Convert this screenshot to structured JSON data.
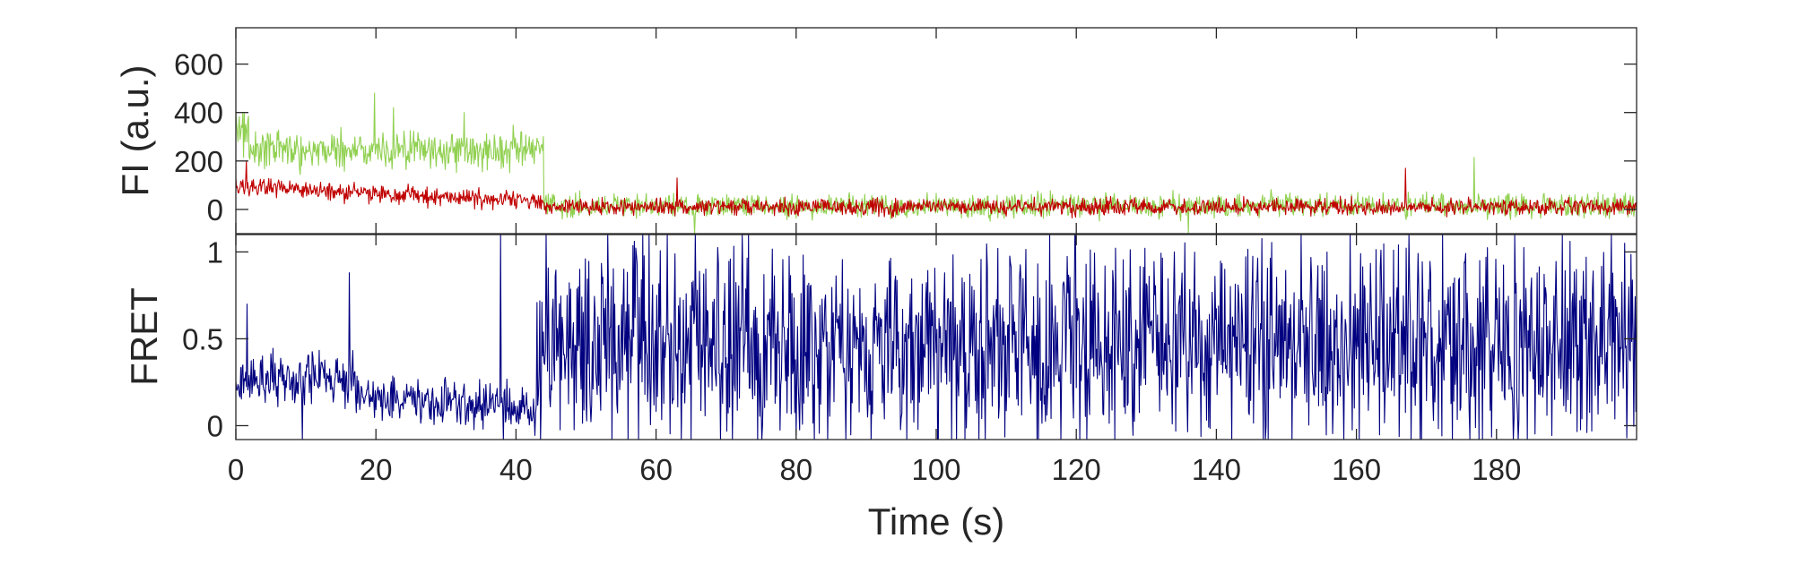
{
  "chart_data": [
    {
      "type": "line",
      "ylabel": "FI (a.u.)",
      "xlim": [
        0,
        200
      ],
      "ylim": [
        -100,
        750
      ],
      "yticks": [
        0,
        200,
        400,
        600
      ],
      "ytick_labels": [
        "0",
        "200",
        "400",
        "600"
      ],
      "grid": false,
      "box": true,
      "series": [
        {
          "color": "#90d050",
          "segments": [
            {
              "x_start": 0,
              "x_end": 2,
              "start": 350,
              "end": 280,
              "noise": 75
            },
            {
              "x_start": 2,
              "x_end": 44,
              "start": 250,
              "end": 240,
              "noise": 70
            },
            {
              "x_start": 44,
              "x_end": 200,
              "start": 15,
              "end": 15,
              "noise": 42
            }
          ],
          "spikes": [
            {
              "x": 1.0,
              "y": 400
            },
            {
              "x": 19.8,
              "y": 480
            },
            {
              "x": 22.5,
              "y": 420
            },
            {
              "x": 32.6,
              "y": 400
            },
            {
              "x": 40.8,
              "y": 320
            },
            {
              "x": 176.8,
              "y": 215
            },
            {
              "x": 65.5,
              "y": -100
            },
            {
              "x": 136.0,
              "y": -100
            }
          ]
        },
        {
          "color": "#c00000",
          "segments": [
            {
              "x_start": 0,
              "x_end": 44,
              "start": 95,
              "end": 30,
              "noise": 32
            },
            {
              "x_start": 44,
              "x_end": 200,
              "start": 10,
              "end": 10,
              "noise": 30
            }
          ],
          "spikes": [
            {
              "x": 1.5,
              "y": 200
            },
            {
              "x": 63.0,
              "y": 130
            },
            {
              "x": 167.0,
              "y": 170
            }
          ]
        }
      ]
    },
    {
      "type": "line",
      "ylabel": "FRET",
      "xlabel": "Time (s)",
      "xlim": [
        0,
        200
      ],
      "ylim": [
        -0.08,
        1.1
      ],
      "yticks": [
        0,
        0.5,
        1
      ],
      "ytick_labels": [
        "0",
        "0.5",
        "1"
      ],
      "xticks": [
        0,
        20,
        40,
        60,
        80,
        100,
        120,
        140,
        160,
        180
      ],
      "xtick_labels": [
        "0",
        "20",
        "40",
        "60",
        "80",
        "100",
        "120",
        "140",
        "160",
        "180"
      ],
      "grid": false,
      "box": true,
      "series": [
        {
          "color": "#000080",
          "segments": [
            {
              "x_start": 0,
              "x_end": 17,
              "start": 0.27,
              "end": 0.27,
              "noise": 0.12
            },
            {
              "x_start": 17,
              "x_end": 43,
              "start": 0.18,
              "end": 0.1,
              "noise": 0.11
            },
            {
              "x_start": 43,
              "x_end": 200,
              "start": 0.48,
              "end": 0.48,
              "noise": 0.5
            }
          ],
          "spikes": [
            {
              "x": 1.6,
              "y": 0.7
            },
            {
              "x": 16.2,
              "y": 0.88
            },
            {
              "x": 9.5,
              "y": -0.08
            },
            {
              "x": 37.8,
              "y": 1.1
            },
            {
              "x": 38.2,
              "y": -0.08
            }
          ]
        }
      ]
    }
  ]
}
